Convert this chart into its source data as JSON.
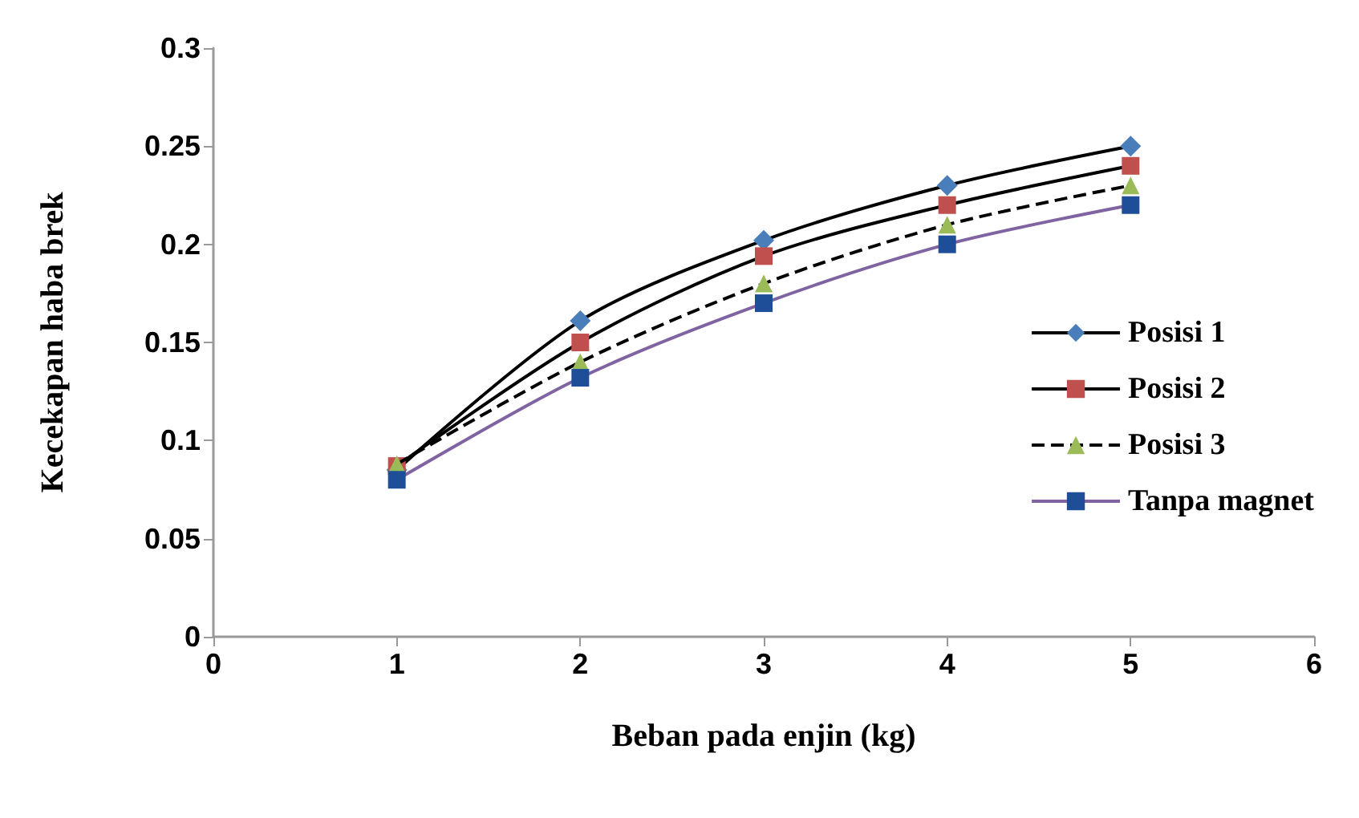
{
  "chart_data": {
    "type": "line",
    "xlabel": "Beban pada enjin (kg)",
    "ylabel": "Kecekapan haba brek",
    "x": [
      1,
      2,
      3,
      4,
      5
    ],
    "series": [
      {
        "name": "Posisi 1",
        "color": "#000000",
        "colors": [
          "#4a7ebb",
          "#4a7ebb",
          "#4a7ebb",
          "#4a7ebb",
          "#4a7ebb"
        ],
        "marker": "diamond",
        "line_style": "solid",
        "values": [
          0.085,
          0.161,
          0.202,
          0.23,
          0.25
        ]
      },
      {
        "name": "Posisi 2",
        "color": "#000000",
        "colors": [
          "#c0504d",
          "#c0504d",
          "#c0504d",
          "#c0504d",
          "#c0504d"
        ],
        "marker": "square",
        "line_style": "solid",
        "values": [
          0.087,
          0.15,
          0.194,
          0.22,
          0.24
        ]
      },
      {
        "name": "Posisi 3",
        "color": "#000000",
        "colors": [
          "#9bbb59",
          "#9bbb59",
          "#9bbb59",
          "#9bbb59",
          "#9bbb59"
        ],
        "marker": "triangle",
        "line_style": "dashed",
        "values": [
          0.088,
          0.14,
          0.18,
          0.21,
          0.23
        ]
      },
      {
        "name": "Tanpa magnet",
        "color": "#8064a2",
        "colors": [
          "#1f4e99",
          "#1f4e99",
          "#1f4e99",
          "#1f4e99",
          "#1f4e99"
        ],
        "marker": "square",
        "line_style": "solid",
        "values": [
          0.08,
          0.132,
          0.17,
          0.2,
          0.22
        ]
      }
    ],
    "xlim": [
      0,
      6
    ],
    "xticks": [
      0,
      1,
      2,
      3,
      4,
      5,
      6
    ],
    "ylim": [
      0,
      0.3
    ],
    "yticks": [
      0,
      0.05,
      0.1,
      0.15,
      0.2,
      0.25,
      0.3
    ],
    "grid": false,
    "legend": "right"
  }
}
